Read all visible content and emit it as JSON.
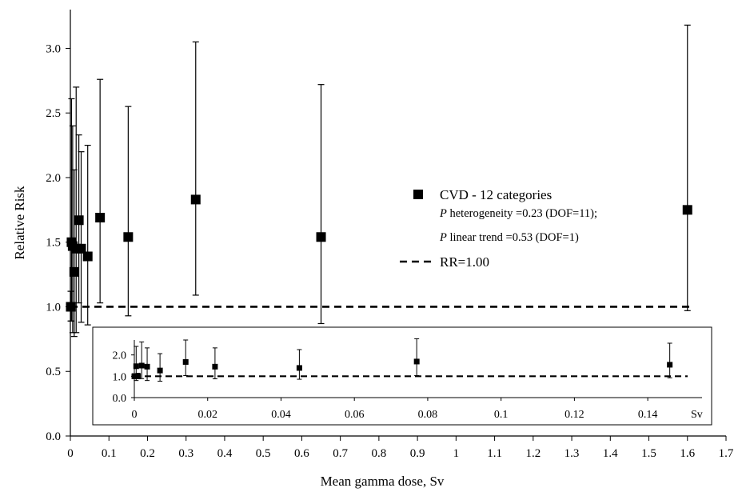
{
  "chart_data": [
    {
      "type": "scatter",
      "xlabel": "Mean gamma dose, Sv",
      "ylabel": "Relative Risk",
      "xlim": [
        0,
        1.7
      ],
      "ylim": [
        0,
        3.3
      ],
      "x_ticks": [
        "0",
        "0.1",
        "0.2",
        "0.3",
        "0.4",
        "0.5",
        "0.6",
        "0.7",
        "0.8",
        "0.9",
        "1",
        "1.1",
        "1.2",
        "1.3",
        "1.4",
        "1.5",
        "1.6",
        "1.7"
      ],
      "y_ticks": [
        "0.0",
        "0.5",
        "1.0",
        "1.5",
        "2.0",
        "2.5",
        "3.0"
      ],
      "series": [
        {
          "name": "CVD - 12 categories",
          "points": [
            {
              "x": 0.001,
              "y": 1.0,
              "lo": 0.89,
              "hi": 1.12
            },
            {
              "x": 0.003,
              "y": 1.5,
              "lo": 0.89,
              "hi": 2.61
            },
            {
              "x": 0.006,
              "y": 1.47,
              "lo": 0.8,
              "hi": 2.4
            },
            {
              "x": 0.01,
              "y": 1.27,
              "lo": 0.77,
              "hi": 2.06
            },
            {
              "x": 0.015,
              "y": 1.45,
              "lo": 0.8,
              "hi": 2.7
            },
            {
              "x": 0.022,
              "y": 1.67,
              "lo": 1.03,
              "hi": 2.33
            },
            {
              "x": 0.028,
              "y": 1.45,
              "lo": 0.88,
              "hi": 2.2
            },
            {
              "x": 0.045,
              "y": 1.39,
              "lo": 0.86,
              "hi": 2.25
            },
            {
              "x": 0.077,
              "y": 1.69,
              "lo": 1.03,
              "hi": 2.76
            },
            {
              "x": 0.15,
              "y": 1.54,
              "lo": 0.93,
              "hi": 2.55
            },
            {
              "x": 0.325,
              "y": 1.83,
              "lo": 1.09,
              "hi": 3.05
            },
            {
              "x": 0.65,
              "y": 1.54,
              "lo": 0.87,
              "hi": 2.72
            },
            {
              "x": 1.6,
              "y": 1.75,
              "lo": 0.97,
              "hi": 3.18
            }
          ]
        }
      ],
      "reference_line": {
        "name": "RR=1.00",
        "y": 1.0,
        "style": "dashed"
      },
      "legend": {
        "position": "right-center",
        "series_label": "CVD - 12 categories",
        "heterogeneity_p": "P",
        "heterogeneity_text": " heterogeneity =0.23 (DOF=11);",
        "trend_p": "P",
        "trend_text": " linear trend =0.53 (DOF=1)",
        "ref_label": "RR=1.00"
      },
      "grid": false
    },
    {
      "type": "scatter",
      "role": "inset",
      "xlabel": "Sv",
      "xlim": [
        0,
        0.15
      ],
      "ylim": [
        0,
        2.7
      ],
      "x_ticks": [
        "0",
        "0.02",
        "0.04",
        "0.06",
        "0.08",
        "0.1",
        "0.12",
        "0.14"
      ],
      "y_ticks": [
        "0.0",
        "1.0",
        "2.0"
      ],
      "series": [
        {
          "name": "CVD - 12 categories",
          "points": [
            {
              "x": 0.0,
              "y": 1.0,
              "lo": 0.89,
              "hi": 1.12
            },
            {
              "x": 0.0005,
              "y": 1.47,
              "lo": 0.8,
              "hi": 2.4
            },
            {
              "x": 0.001,
              "y": 1.0,
              "lo": 0.88,
              "hi": 1.14
            },
            {
              "x": 0.002,
              "y": 1.5,
              "lo": 0.89,
              "hi": 2.61
            },
            {
              "x": 0.0035,
              "y": 1.45,
              "lo": 0.8,
              "hi": 2.33
            },
            {
              "x": 0.007,
              "y": 1.27,
              "lo": 0.77,
              "hi": 2.06
            },
            {
              "x": 0.014,
              "y": 1.67,
              "lo": 1.03,
              "hi": 2.7
            },
            {
              "x": 0.022,
              "y": 1.45,
              "lo": 0.88,
              "hi": 2.33
            },
            {
              "x": 0.045,
              "y": 1.39,
              "lo": 0.86,
              "hi": 2.25
            },
            {
              "x": 0.077,
              "y": 1.69,
              "lo": 1.03,
              "hi": 2.76
            },
            {
              "x": 0.146,
              "y": 1.54,
              "lo": 0.93,
              "hi": 2.55
            }
          ]
        }
      ],
      "reference_line": {
        "y": 1.0,
        "style": "dashed"
      }
    }
  ]
}
